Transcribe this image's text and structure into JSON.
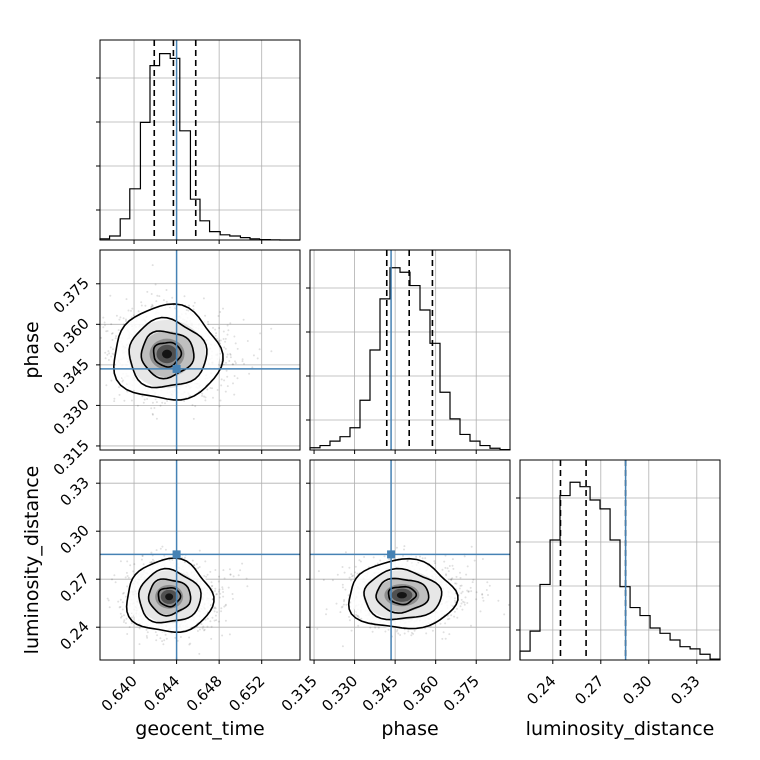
{
  "chart_data": {
    "type": "corner",
    "parameters": [
      "geocent_time",
      "phase",
      "luminosity_distance"
    ],
    "axis_labels": {
      "geocent_time": "geocent_time",
      "phase": "phase",
      "luminosity_distance": "luminosity_distance"
    },
    "ranges": {
      "geocent_time": [
        0.6368,
        0.6556
      ],
      "phase": [
        0.3135,
        0.3875
      ],
      "luminosity_distance": [
        0.2195,
        0.3445
      ]
    },
    "ticks": {
      "geocent_time": [
        "0.640",
        "0.644",
        "0.648",
        "0.652"
      ],
      "phase": [
        "0.315",
        "0.330",
        "0.345",
        "0.360",
        "0.375"
      ],
      "luminosity_distance": [
        "0.24",
        "0.27",
        "0.30",
        "0.33"
      ]
    },
    "truths": {
      "geocent_time": 0.644,
      "phase": 0.3435,
      "luminosity_distance": 0.2855
    },
    "quantiles": {
      "geocent_time": [
        0.6419,
        0.6437,
        0.6458
      ],
      "phase": [
        0.3419,
        0.3502,
        0.3588
      ],
      "luminosity_distance": [
        0.2448,
        0.2608,
        0.2855
      ]
    },
    "histograms": {
      "geocent_time": {
        "bins": [
          0.6368,
          0.6377,
          0.6387,
          0.6396,
          0.6406,
          0.6415,
          0.6424,
          0.6434,
          0.6443,
          0.6453,
          0.6462,
          0.6471,
          0.6481,
          0.649,
          0.65,
          0.6509,
          0.6518,
          0.6528,
          0.6537,
          0.6547,
          0.6556
        ],
        "counts": [
          0.3,
          1.0,
          5.3,
          12.8,
          29.4,
          43.6,
          46.6,
          45.4,
          27.3,
          10.2,
          4.8,
          2.1,
          1.3,
          1.0,
          0.6,
          0.3,
          0.1,
          0.05,
          0.0,
          0.0
        ],
        "ylim": [
          0,
          50
        ]
      },
      "phase": {
        "bins": [
          0.3135,
          0.3172,
          0.3209,
          0.3246,
          0.3283,
          0.332,
          0.3357,
          0.3394,
          0.3431,
          0.3468,
          0.3505,
          0.3542,
          0.3579,
          0.3616,
          0.3653,
          0.369,
          0.3727,
          0.3764,
          0.3801,
          0.3838,
          0.3875
        ],
        "counts": [
          0.5,
          1.0,
          2.0,
          3.0,
          5.0,
          11.2,
          22.5,
          34.0,
          41.0,
          40.0,
          37.0,
          31.5,
          24.0,
          13.0,
          7.0,
          3.5,
          2.0,
          1.0,
          0.4,
          0.1
        ],
        "ylim": [
          0,
          45
        ]
      },
      "luminosity_distance": {
        "bins": [
          0.2195,
          0.2258,
          0.232,
          0.2383,
          0.2445,
          0.2508,
          0.257,
          0.2633,
          0.2695,
          0.2758,
          0.282,
          0.2883,
          0.2945,
          0.3008,
          0.307,
          0.3133,
          0.3195,
          0.3258,
          0.332,
          0.3383,
          0.3445
        ],
        "counts": [
          2.0,
          6.5,
          17.0,
          27.0,
          37.0,
          40.0,
          39.0,
          36.0,
          34.0,
          27.0,
          16.5,
          11.8,
          10.0,
          7.2,
          6.0,
          4.5,
          3.0,
          2.5,
          1.3,
          0.2
        ],
        "ylim": [
          0,
          45
        ]
      }
    },
    "density_centers": {
      "phase_vs_geocent_time": [
        0.6431,
        0.349
      ],
      "luminosity_distance_vs_geocent_time": [
        0.6433,
        0.259
      ],
      "luminosity_distance_vs_phase": [
        0.3475,
        0.26
      ]
    },
    "contour_levels": 4,
    "grid": true,
    "truth_color": "#4682b4"
  }
}
